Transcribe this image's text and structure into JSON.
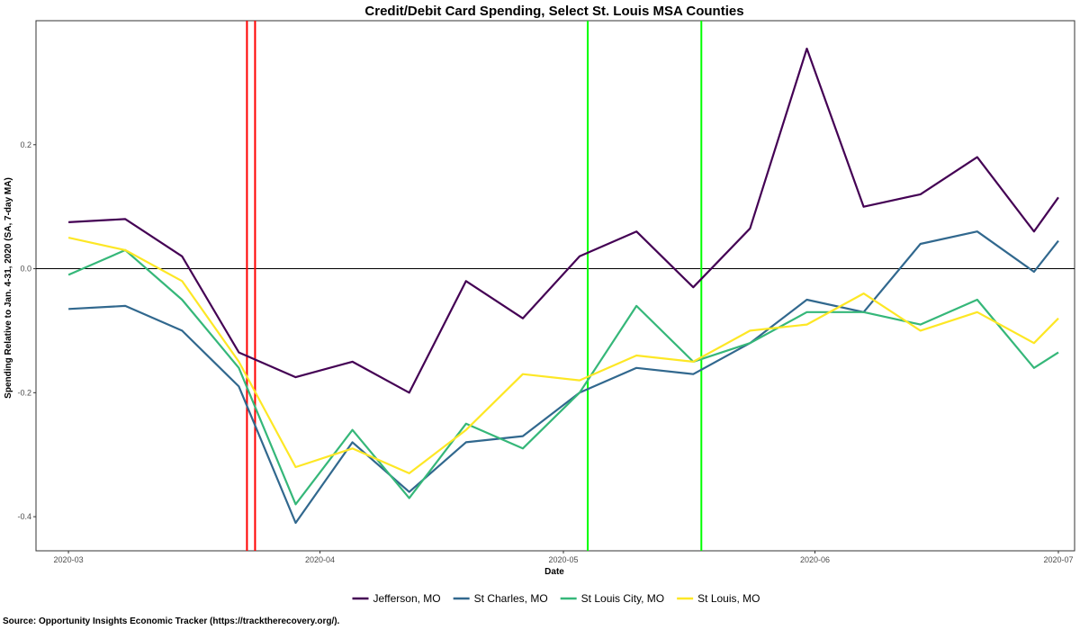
{
  "chart_data": {
    "type": "line",
    "title": "Credit/Debit Card Spending, Select St. Louis MSA Counties",
    "xlabel": "Date",
    "ylabel": "Spending Relative to Jan. 4-31, 2020 (SA, 7-day MA)",
    "source": "Source: Opportunity Insights Economic Tracker (https://tracktherecovery.org/).",
    "x_ticks": [
      "2020-03",
      "2020-04",
      "2020-05",
      "2020-06",
      "2020-07"
    ],
    "y_ticks": [
      "-0.4",
      "-0.2",
      "0.0",
      "0.2"
    ],
    "x_range": [
      "2020-02-26",
      "2020-07-03"
    ],
    "ylim": [
      -0.455,
      0.4
    ],
    "grid": false,
    "legend_position": "bottom",
    "reference_lines": {
      "horizontal": [
        {
          "y": 0,
          "color": "#000000"
        }
      ],
      "vertical": [
        {
          "date": "2020-03-23",
          "color": "#ff0000"
        },
        {
          "date": "2020-03-24",
          "color": "#ff0000"
        },
        {
          "date": "2020-05-04",
          "color": "#00ff00"
        },
        {
          "date": "2020-05-18",
          "color": "#00ff00"
        }
      ]
    },
    "x": [
      "2020-03-01",
      "2020-03-08",
      "2020-03-15",
      "2020-03-22",
      "2020-03-29",
      "2020-04-05",
      "2020-04-12",
      "2020-04-19",
      "2020-04-26",
      "2020-05-03",
      "2020-05-10",
      "2020-05-17",
      "2020-05-24",
      "2020-05-31",
      "2020-06-07",
      "2020-06-14",
      "2020-06-21",
      "2020-06-28",
      "2020-07-01"
    ],
    "series": [
      {
        "name": "Jefferson, MO",
        "color": "#440154",
        "values": [
          0.075,
          0.08,
          0.02,
          -0.135,
          -0.175,
          -0.15,
          -0.2,
          -0.02,
          -0.08,
          0.02,
          0.06,
          -0.03,
          0.065,
          0.355,
          0.1,
          0.12,
          0.18,
          0.06,
          0.115
        ]
      },
      {
        "name": "St Charles, MO",
        "color": "#31688e",
        "values": [
          -0.065,
          -0.06,
          -0.1,
          -0.19,
          -0.41,
          -0.28,
          -0.36,
          -0.28,
          -0.27,
          -0.2,
          -0.16,
          -0.17,
          -0.12,
          -0.05,
          -0.07,
          0.04,
          0.06,
          -0.005,
          0.045
        ]
      },
      {
        "name": "St Louis City, MO",
        "color": "#35b779",
        "values": [
          -0.01,
          0.03,
          -0.05,
          -0.16,
          -0.38,
          -0.26,
          -0.37,
          -0.25,
          -0.29,
          -0.2,
          -0.06,
          -0.15,
          -0.12,
          -0.07,
          -0.07,
          -0.09,
          -0.05,
          -0.16,
          -0.135
        ]
      },
      {
        "name": "St Louis, MO",
        "color": "#fde725",
        "values": [
          0.05,
          0.03,
          -0.02,
          -0.15,
          -0.32,
          -0.29,
          -0.33,
          -0.26,
          -0.17,
          -0.18,
          -0.14,
          -0.15,
          -0.1,
          -0.09,
          -0.04,
          -0.1,
          -0.07,
          -0.12,
          -0.08
        ]
      }
    ]
  }
}
